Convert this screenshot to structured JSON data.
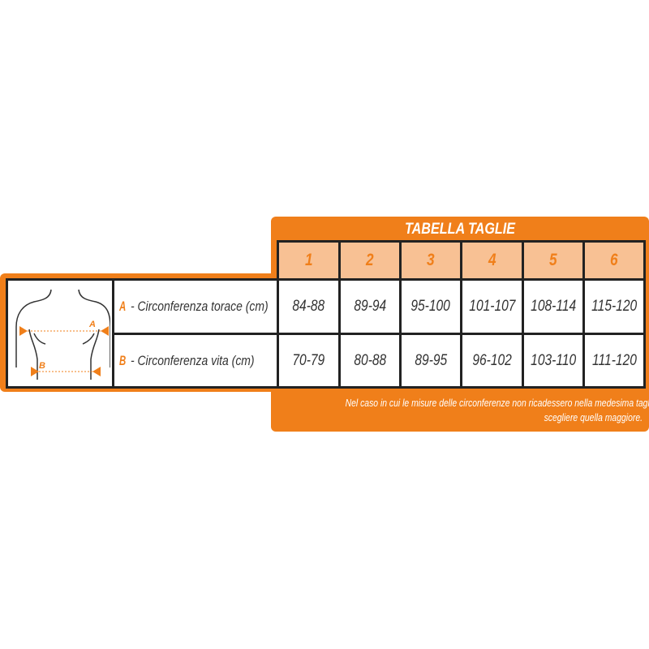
{
  "title": "TABELLA TAGLIE",
  "sizes": [
    "1",
    "2",
    "3",
    "4",
    "5",
    "6"
  ],
  "rows": [
    {
      "letter": "A",
      "label": " - Circonferenza torace (cm)",
      "values": [
        "84-88",
        "89-94",
        "95-100",
        "101-107",
        "108-114",
        "115-120"
      ]
    },
    {
      "letter": "B",
      "label": " - Circonferenza vita (cm)",
      "values": [
        "70-79",
        "80-88",
        "89-95",
        "96-102",
        "103-110",
        "111-120"
      ]
    }
  ],
  "note": [
    "Nel caso in cui le misure delle circonferenze non ricadessero nella medesima taglia,",
    "scegliere quella maggiore."
  ],
  "diagram": {
    "label_a": "A",
    "label_b": "B"
  },
  "colors": {
    "accent": "#f07f1a",
    "header_fill": "#f8c194",
    "border": "#222222"
  }
}
